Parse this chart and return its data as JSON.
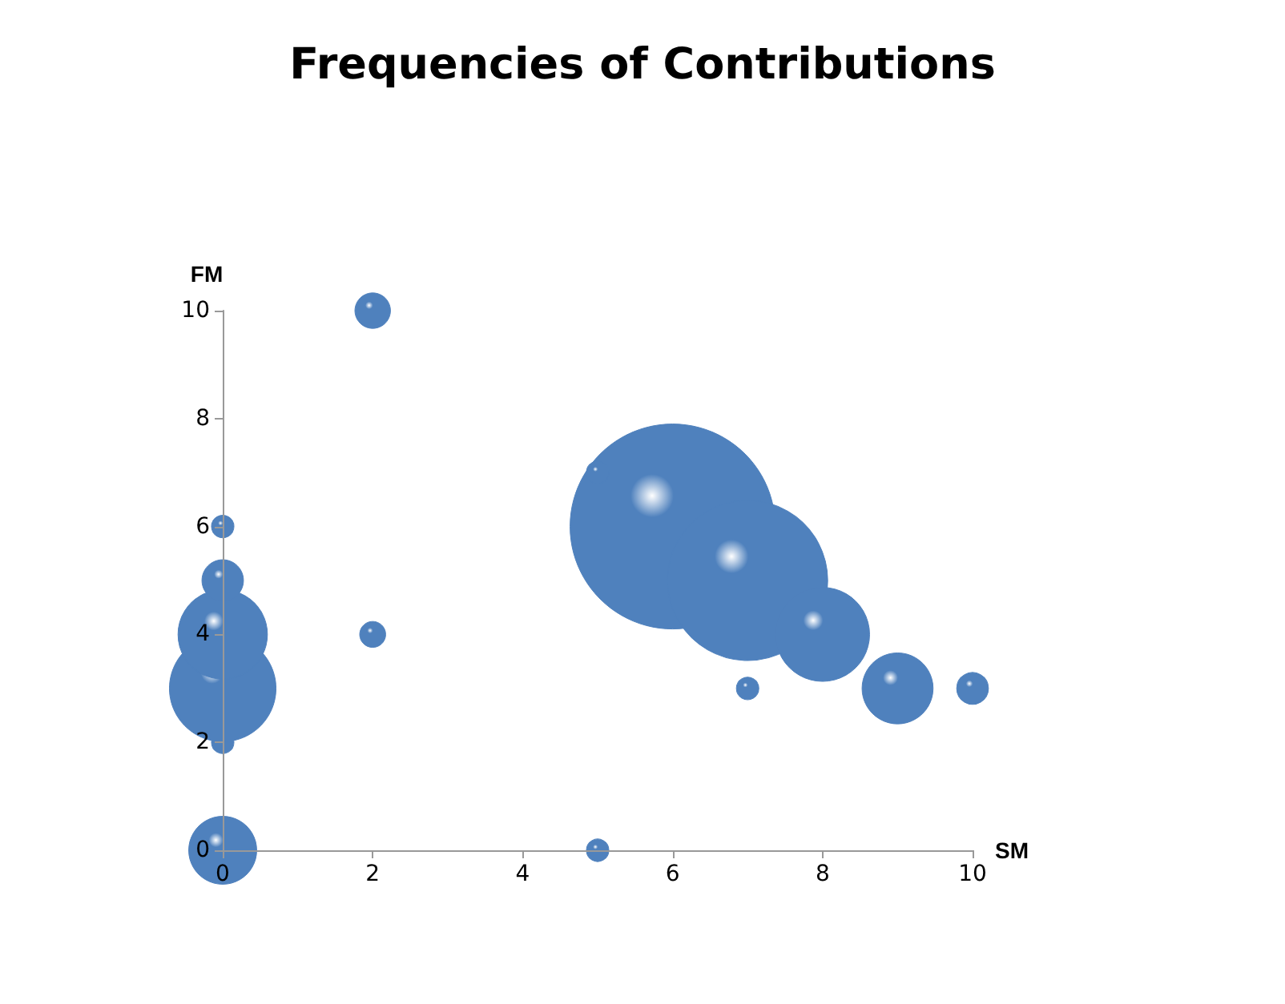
{
  "chart_data": {
    "type": "bubble",
    "title": "Frequencies of Contributions",
    "xlabel": "SM",
    "ylabel": "FM",
    "x": [
      0,
      0,
      0,
      0,
      0,
      0,
      2,
      2,
      5,
      6,
      7,
      7,
      8,
      9,
      10,
      5
    ],
    "series": [
      {
        "color": "#4f81bd",
        "values": [
          0,
          2,
          3,
          4,
          5,
          6,
          4,
          10,
          0,
          6,
          5,
          3,
          4,
          3,
          3,
          7
        ],
        "sizes": [
          0.11,
          0.012,
          0.27,
          0.19,
          0.041,
          0.012,
          0.016,
          0.03,
          0.012,
          1,
          0.61,
          0.012,
          0.21,
          0.12,
          0.024,
          0.012
        ]
      }
    ],
    "xlim": [
      0,
      10
    ],
    "ylim": [
      0,
      10
    ],
    "xticks": [
      0,
      2,
      4,
      6,
      8,
      10
    ],
    "yticks": [
      0,
      2,
      4,
      6,
      8,
      10
    ],
    "grid": false
  }
}
